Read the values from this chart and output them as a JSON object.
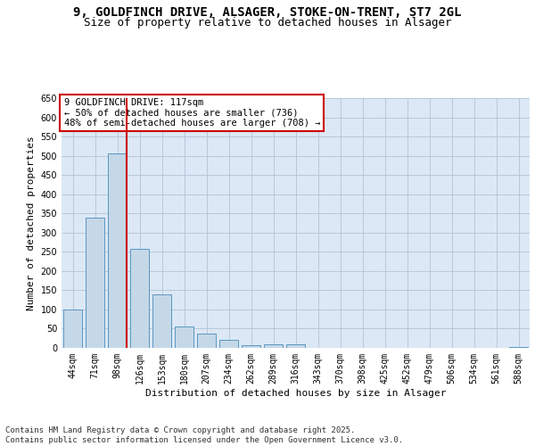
{
  "title_line1": "9, GOLDFINCH DRIVE, ALSAGER, STOKE-ON-TRENT, ST7 2GL",
  "title_line2": "Size of property relative to detached houses in Alsager",
  "xlabel": "Distribution of detached houses by size in Alsager",
  "ylabel": "Number of detached properties",
  "categories": [
    "44sqm",
    "71sqm",
    "98sqm",
    "126sqm",
    "153sqm",
    "180sqm",
    "207sqm",
    "234sqm",
    "262sqm",
    "289sqm",
    "316sqm",
    "343sqm",
    "370sqm",
    "398sqm",
    "425sqm",
    "452sqm",
    "479sqm",
    "506sqm",
    "534sqm",
    "561sqm",
    "588sqm"
  ],
  "values": [
    100,
    338,
    507,
    257,
    140,
    55,
    37,
    20,
    6,
    10,
    9,
    0,
    0,
    0,
    0,
    0,
    0,
    0,
    0,
    0,
    3
  ],
  "bar_color": "#c5d8e8",
  "bar_edge_color": "#5a96c0",
  "grid_color": "#b0c4d8",
  "background_color": "#dce8f5",
  "vline_color": "#cc0000",
  "annotation_text": "9 GOLDFINCH DRIVE: 117sqm\n← 50% of detached houses are smaller (736)\n48% of semi-detached houses are larger (708) →",
  "annotation_box_color": "#ffffff",
  "annotation_box_edge": "#cc0000",
  "ylim": [
    0,
    650
  ],
  "yticks": [
    0,
    50,
    100,
    150,
    200,
    250,
    300,
    350,
    400,
    450,
    500,
    550,
    600,
    650
  ],
  "footer_text": "Contains HM Land Registry data © Crown copyright and database right 2025.\nContains public sector information licensed under the Open Government Licence v3.0.",
  "title_fontsize": 10,
  "subtitle_fontsize": 9,
  "axis_label_fontsize": 8,
  "tick_fontsize": 7,
  "annotation_fontsize": 7.5,
  "footer_fontsize": 6.5
}
